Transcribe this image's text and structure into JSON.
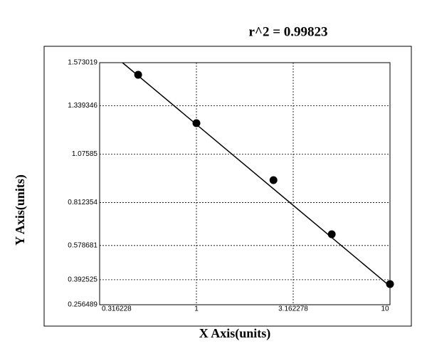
{
  "chart_data": {
    "type": "scatter",
    "title": "r^2  =  0.99823",
    "x_label": "X Axis(units)",
    "y_label": "Y Axis(units)",
    "xscale": "log",
    "grid": true,
    "color": "#000000",
    "xlim": [
      0.316228,
      10
    ],
    "xticks": [
      0.316228,
      1,
      3.162278,
      10
    ],
    "ylim": [
      0.256489,
      1.573019
    ],
    "yticks": [
      1.573019,
      1.339346,
      1.07585,
      0.812354,
      0.578681,
      0.392525,
      0.256489
    ],
    "x": [
      0.5,
      1,
      2.5,
      5,
      10
    ],
    "values": [
      1.507,
      1.244,
      0.934,
      0.64,
      0.369
    ],
    "fit_line": {
      "x": [
        0.415,
        10
      ],
      "values": [
        1.573019,
        0.357
      ]
    }
  }
}
